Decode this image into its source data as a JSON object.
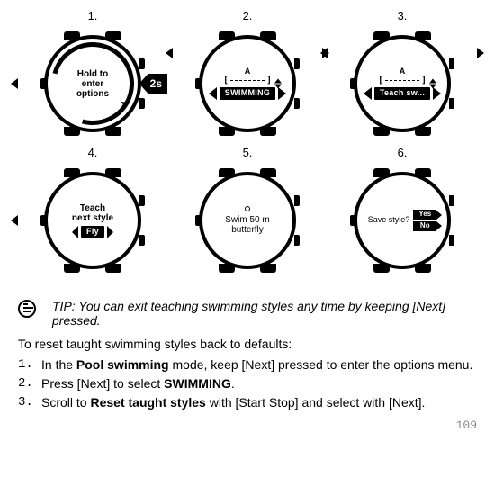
{
  "grid": {
    "steps": [
      {
        "num": "1.",
        "face_main": "Hold to\nenter\noptions",
        "badge": "2s",
        "variant": "arc_hold"
      },
      {
        "num": "2.",
        "face_bar": "SWIMMING",
        "variant": "scroll_bar",
        "top_label": "A"
      },
      {
        "num": "3.",
        "face_bar": "Teach sw...",
        "variant": "scroll_bar",
        "top_label": "A"
      },
      {
        "num": "4.",
        "face_main": "Teach\nnext style",
        "face_bar": "Fly",
        "variant": "next_style"
      },
      {
        "num": "5.",
        "face_main": "Swim 50 m\nbutterfly",
        "variant": "swim",
        "dot": true
      },
      {
        "num": "6.",
        "face_main": "Save style?",
        "opts": [
          "Yes",
          "No"
        ],
        "variant": "save"
      }
    ]
  },
  "tip": "TIP: You can exit teaching swimming styles any time by keeping [Next] pressed.",
  "reset_heading": "To reset taught swimming styles back to defaults:",
  "reset_steps": [
    {
      "n": "1.",
      "parts": [
        "In the ",
        {
          "b": "Pool swimming"
        },
        " mode, keep [Next] pressed to enter the options menu."
      ]
    },
    {
      "n": "2.",
      "parts": [
        "Press [Next] to select ",
        {
          "b": "SWIMMING"
        },
        "."
      ]
    },
    {
      "n": "3.",
      "parts": [
        "Scroll to ",
        {
          "b": "Reset taught styles"
        },
        " with [Start Stop] and select with [Next]."
      ]
    }
  ],
  "page_number": "109"
}
